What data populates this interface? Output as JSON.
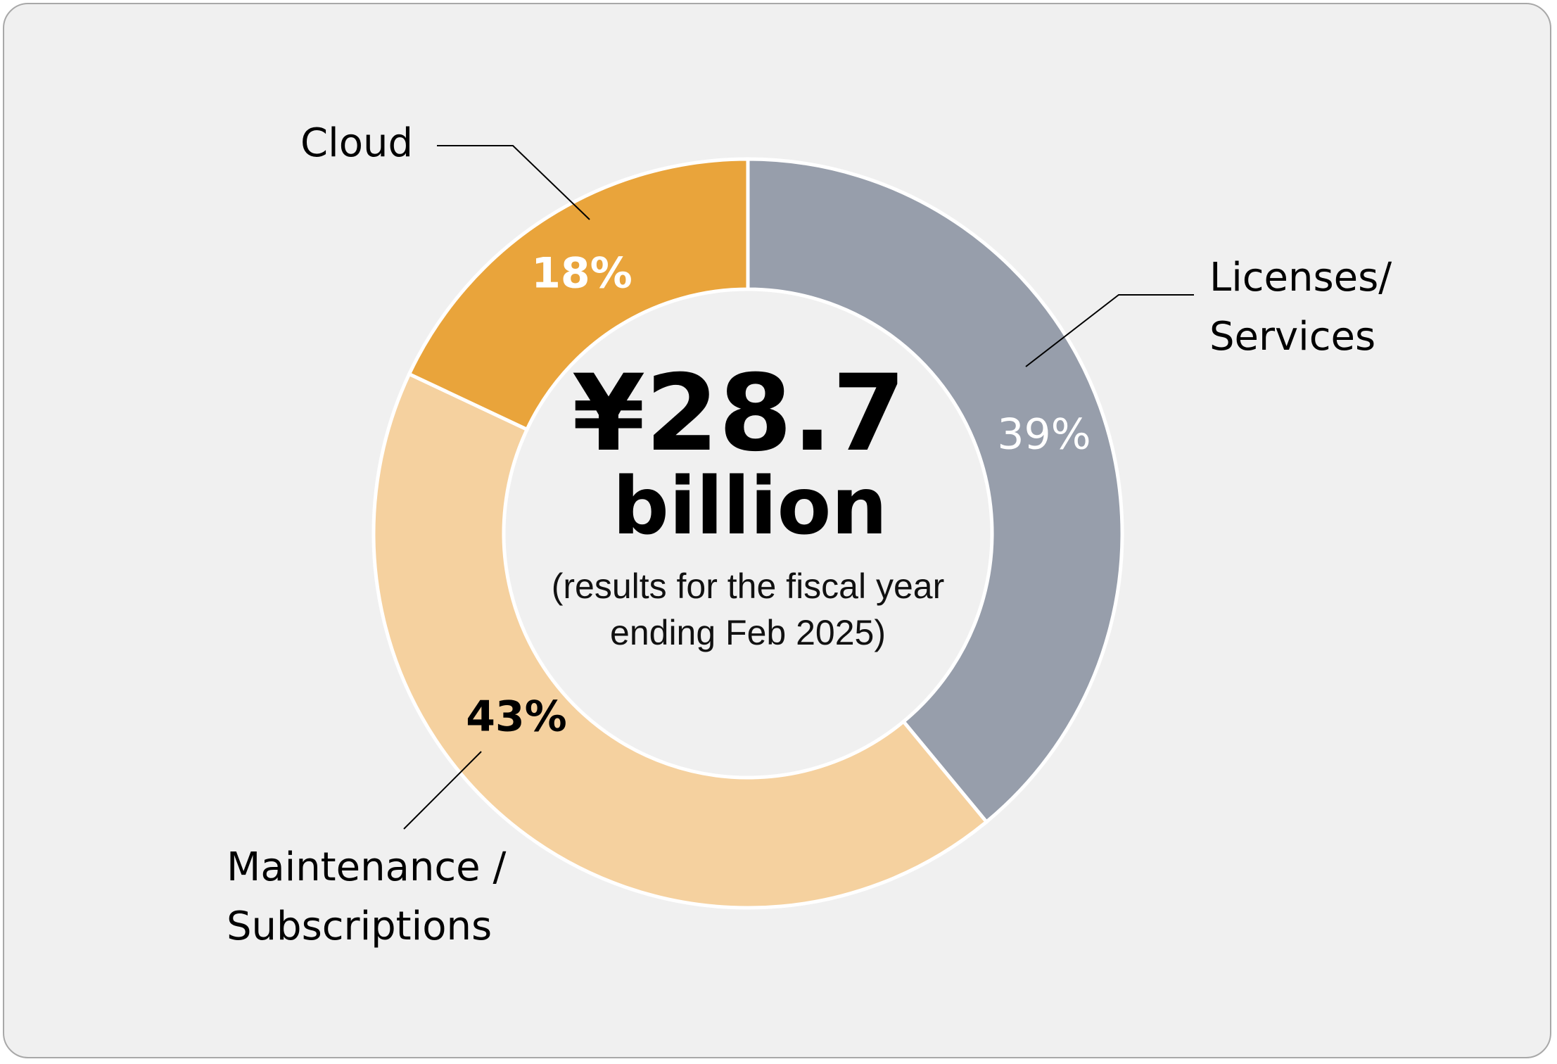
{
  "chart_data": {
    "type": "donut",
    "categories": [
      "Licenses/ Services",
      "Maintenance / Subscriptions",
      "Cloud"
    ],
    "values": [
      39,
      43,
      18
    ],
    "value_labels": [
      "39%",
      "43%",
      "18%"
    ],
    "colors": [
      "#979eab",
      "#f5d19f",
      "#e9a43b"
    ],
    "center_value": "¥28.7",
    "center_unit": "billion",
    "center_note": "(results for the fiscal year ending Feb 2025)"
  }
}
